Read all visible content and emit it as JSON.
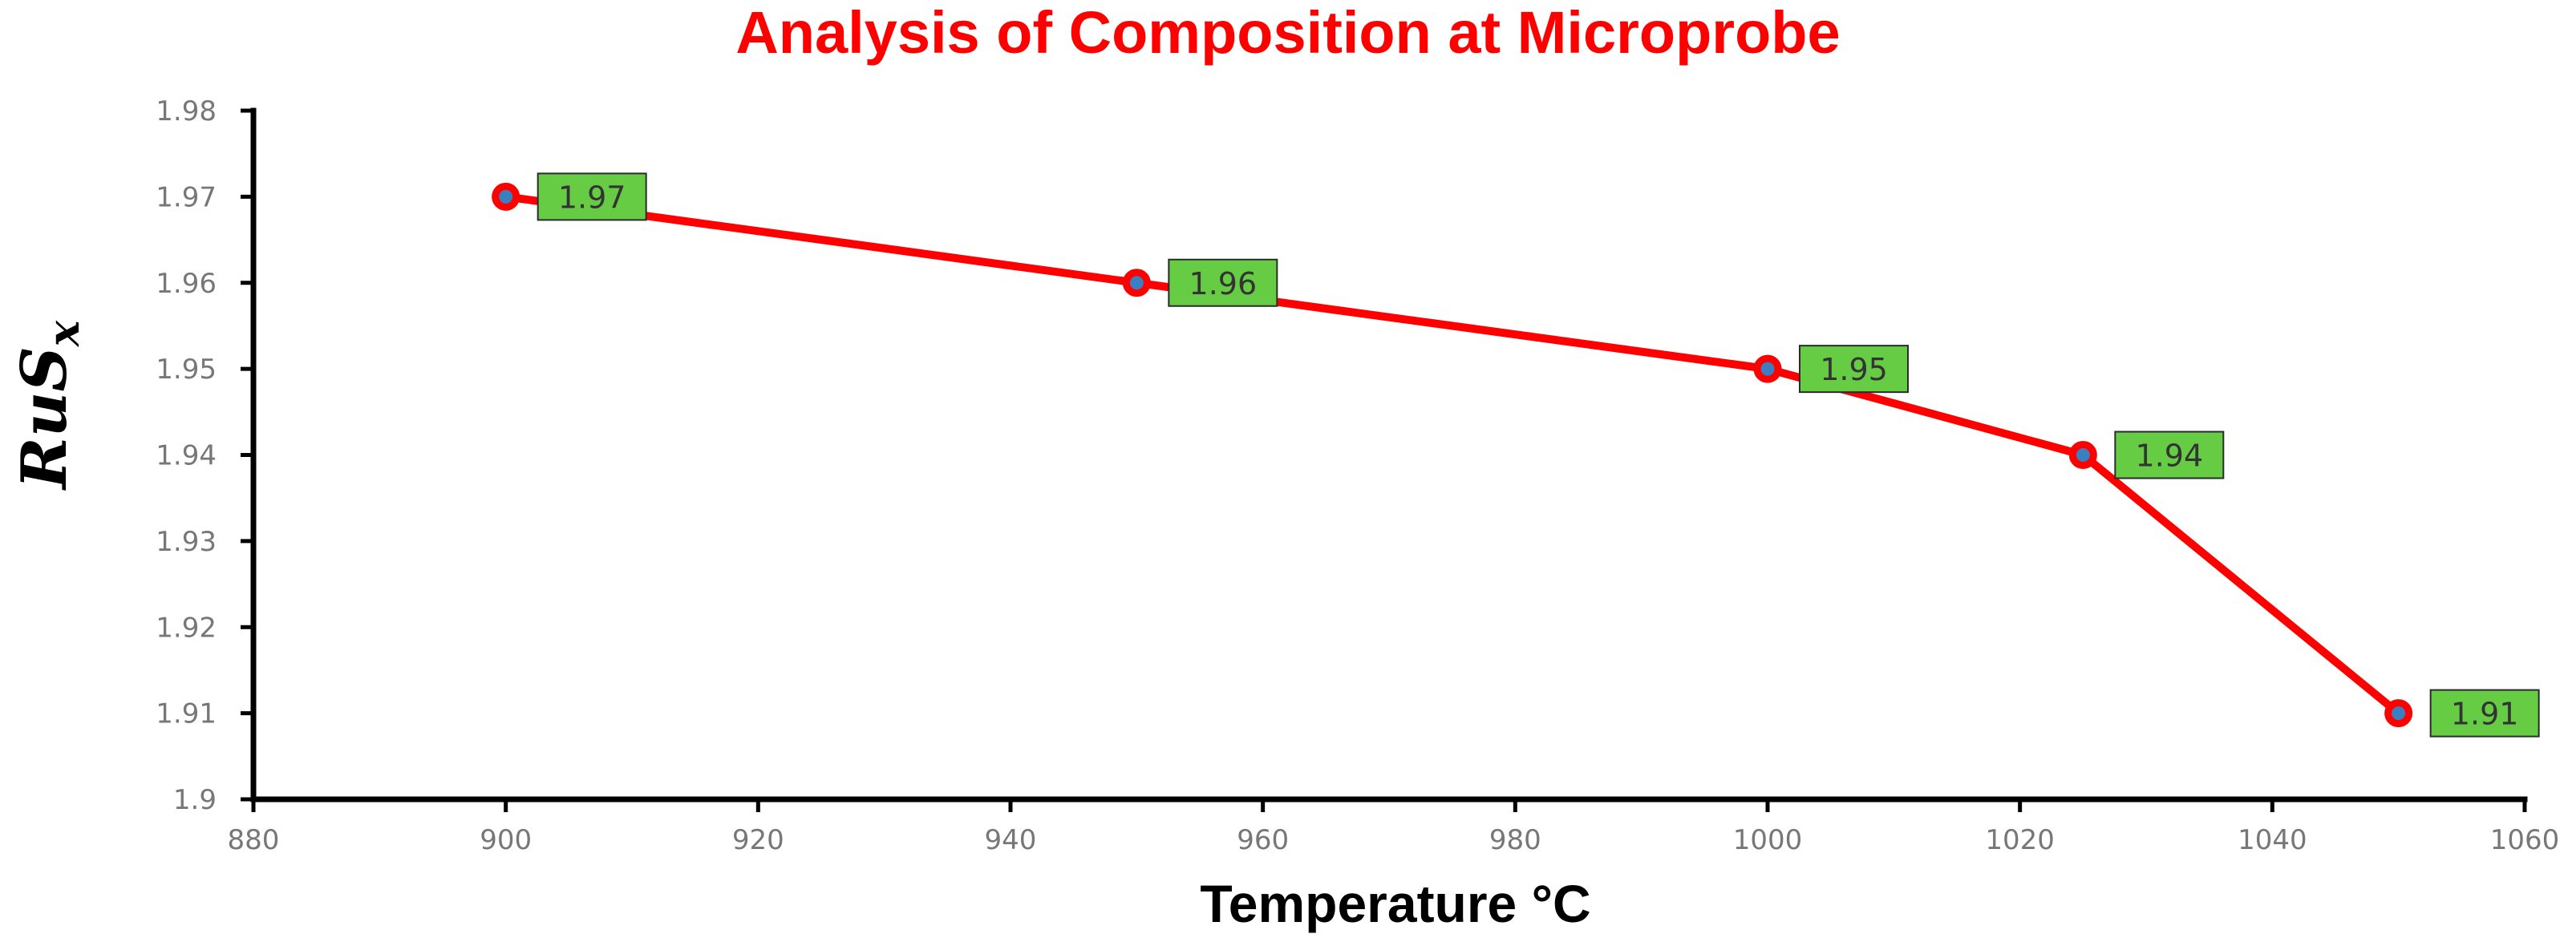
{
  "chart_data": {
    "type": "line",
    "title": "Analysis of Composition at Microprobe",
    "xlabel": "Temperature  °C",
    "ylabel": {
      "main": "RuS",
      "sub": "x"
    },
    "xlim": [
      880,
      1060
    ],
    "ylim": [
      1.9,
      1.98
    ],
    "xticks": [
      880,
      900,
      920,
      940,
      960,
      980,
      1000,
      1020,
      1040,
      1060
    ],
    "xtick_labels": [
      "880",
      "900",
      "920",
      "940",
      "960",
      "980",
      "1000",
      "1020",
      "1040",
      "1060"
    ],
    "yticks": [
      1.9,
      1.91,
      1.92,
      1.93,
      1.94,
      1.95,
      1.96,
      1.97,
      1.98
    ],
    "ytick_labels": [
      "1.9",
      "1.91",
      "1.92",
      "1.93",
      "1.94",
      "1.95",
      "1.96",
      "1.97",
      "1.98"
    ],
    "grid": false,
    "series": [
      {
        "x": [
          900,
          950,
          1000,
          1025,
          1050
        ],
        "y": [
          1.97,
          1.96,
          1.95,
          1.94,
          1.91
        ],
        "data_labels": [
          "1.97",
          "1.96",
          "1.95",
          "1.94",
          "1.91"
        ],
        "color": "#ff0000",
        "marker_fill": "#3a7fc0",
        "label_bg": "#66cc44"
      }
    ],
    "colors": {
      "title": "#ff0000",
      "axis": "#000000",
      "line": "#ff0000"
    }
  }
}
